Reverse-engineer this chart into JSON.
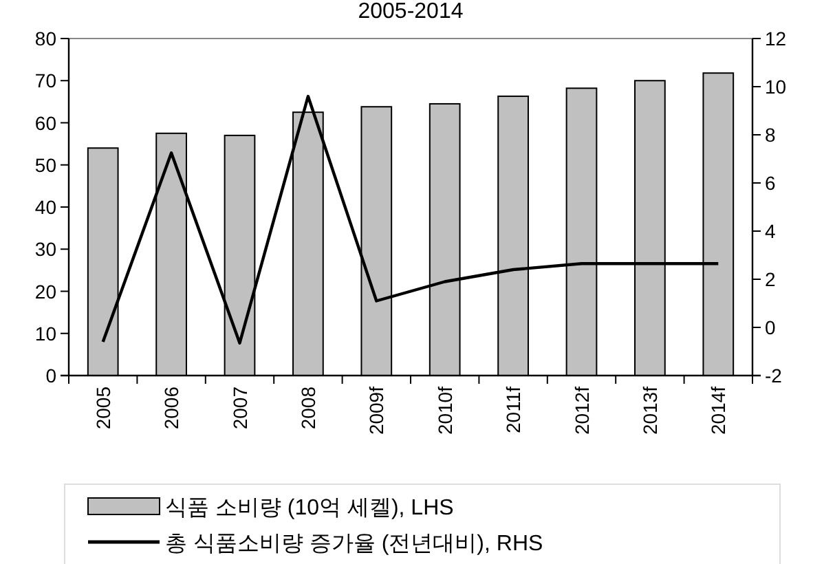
{
  "chart_data": {
    "type": "bar",
    "title": "2005-2014",
    "categories": [
      "2005",
      "2006",
      "2007",
      "2008",
      "2009f",
      "2010f",
      "2011f",
      "2012f",
      "2013f",
      "2014f"
    ],
    "series": [
      {
        "name": "식품 소비량 (10억 세켈), LHS",
        "color": "#c0c0c0",
        "values": [
          54,
          57.5,
          57,
          62.5,
          63.8,
          64.5,
          66.3,
          68.2,
          70,
          71.8
        ]
      },
      {
        "name": "총 식품소비량 증가율 (전년대비), RHS",
        "type": "line",
        "axis": "y2",
        "color": "#000000",
        "values": [
          -0.6,
          7.25,
          -0.65,
          9.6,
          1.1,
          1.9,
          2.4,
          2.65,
          2.65,
          2.65
        ]
      }
    ],
    "ylim": [
      0,
      80
    ],
    "yticks": [
      0,
      10,
      20,
      30,
      40,
      50,
      60,
      70,
      80
    ],
    "y2lim": [
      -2,
      12
    ],
    "y2ticks": [
      -2,
      0,
      2,
      4,
      6,
      8,
      10,
      12
    ],
    "grid": false,
    "legend": "bottom",
    "marker": "none",
    "line_style": "solid"
  }
}
